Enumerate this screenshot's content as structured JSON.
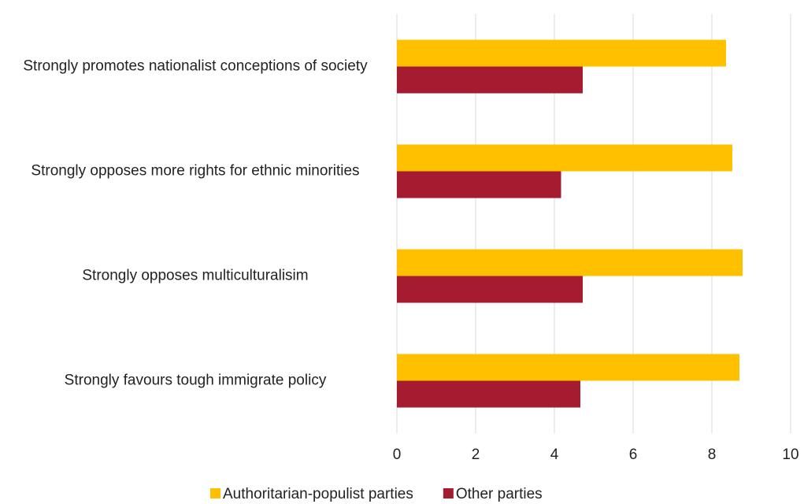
{
  "chart_data": {
    "type": "hbar",
    "categories": [
      "Strongly promotes nationalist conceptions of society",
      "Strongly opposes more rights for ethnic minorities",
      "Strongly opposes multiculturalisim",
      "Strongly favours tough immigrate policy"
    ],
    "series": [
      {
        "name": "Authoritarian-populist parties",
        "color": "#ffc000",
        "values": [
          8.36,
          8.52,
          8.78,
          8.7
        ]
      },
      {
        "name": "Other parties",
        "color": "#a51c30",
        "values": [
          4.72,
          4.17,
          4.72,
          4.66
        ]
      }
    ],
    "xlim": [
      0,
      10
    ],
    "xticks": [
      0,
      2,
      4,
      6,
      8,
      10
    ],
    "grid": true,
    "legend": "bottom"
  }
}
